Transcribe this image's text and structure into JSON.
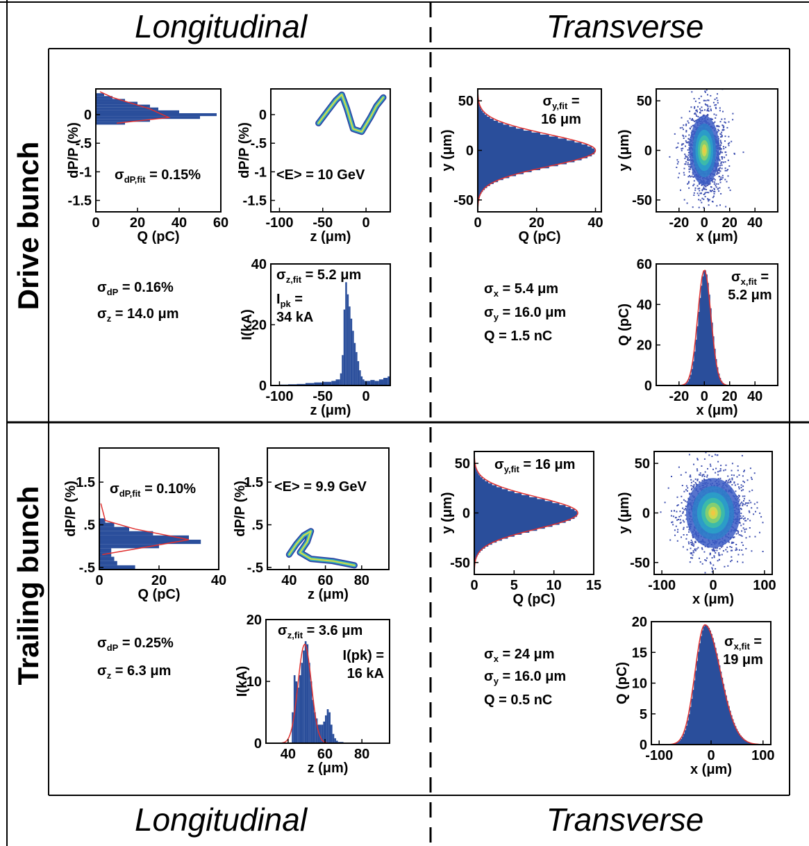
{
  "headings": {
    "longitudinal": "Longitudinal",
    "transverse": "Transverse"
  },
  "row_labels": {
    "drive": "Drive bunch",
    "trailing": "Trailing bunch"
  },
  "summaries": {
    "drive_long": {
      "sigma_dP": " = 0.16%",
      "sigma_z": " = 14.0 μm"
    },
    "drive_trans": {
      "sigma_x": " = 5.4 μm",
      "sigma_y": " = 16.0 μm",
      "charge": "Q = 1.5 nC"
    },
    "trailing_long": {
      "sigma_dP": " = 0.25%",
      "sigma_z": " = 6.3 μm"
    },
    "trailing_trans": {
      "sigma_x": " = 24 μm",
      "sigma_y": " = 16.0 μm",
      "charge": "Q = 0.5 nC"
    }
  },
  "colors": {
    "hist_fill": "#2a4e9b",
    "fit_line": "#e0302f",
    "frame": "#000000",
    "core": "#f2e23a"
  },
  "chart_data": [
    {
      "id": "drive-dpp-vs-q",
      "type": "bar",
      "orientation": "horizontal",
      "xlabel": "Q (pC)",
      "ylabel": "dP/P (%)",
      "xlim": [
        0,
        60
      ],
      "ylim": [
        -1.7,
        0.45
      ],
      "xticks": [
        "0",
        "20",
        "40",
        "60"
      ],
      "xtick_values": [
        0,
        20,
        40,
        60
      ],
      "yticks": [
        "0",
        "-.5",
        "-1",
        "-1.5"
      ],
      "ytick_values": [
        0,
        -0.5,
        -1,
        -1.5
      ],
      "annotation": {
        "sym": "σ",
        "sub": "dP,fit",
        "rest": " = 0.15%"
      },
      "bins": [
        -0.15,
        -0.1,
        -0.05,
        0.0,
        0.05,
        0.1,
        0.15,
        0.2,
        0.25,
        0.3,
        0.35
      ],
      "values": [
        14,
        26,
        50,
        58,
        40,
        30,
        26,
        20,
        14,
        8,
        4
      ],
      "fit": [
        [
          10,
          -0.15
        ],
        [
          35,
          -0.05
        ],
        [
          26,
          0.1
        ],
        [
          8,
          0.3
        ],
        [
          2,
          0.4
        ]
      ]
    },
    {
      "id": "drive-dpp-vs-z",
      "type": "heatmap",
      "xlabel": "z (μm)",
      "ylabel": "dP/P (%)",
      "xlim": [
        -110,
        28
      ],
      "ylim": [
        -1.7,
        0.45
      ],
      "xticks": [
        "-100",
        "-50",
        "0"
      ],
      "xtick_values": [
        -100,
        -50,
        0
      ],
      "yticks": [
        "0",
        "-.5",
        "-1",
        "-1.5"
      ],
      "ytick_values": [
        0,
        -0.5,
        -1,
        -1.5
      ],
      "annotation": {
        "sym": "",
        "sub": "",
        "rest": "<E> = 10 GeV"
      },
      "ridge": [
        [
          -55,
          -0.15
        ],
        [
          -45,
          0.05
        ],
        [
          -35,
          0.25
        ],
        [
          -28,
          0.35
        ],
        [
          -22,
          0.1
        ],
        [
          -15,
          -0.25
        ],
        [
          -5,
          -0.3
        ],
        [
          5,
          -0.05
        ],
        [
          12,
          0.15
        ],
        [
          20,
          0.3
        ]
      ]
    },
    {
      "id": "drive-y-vs-q",
      "type": "bar",
      "orientation": "horizontal",
      "xlabel": "Q (pC)",
      "ylabel": "y (μm)",
      "xlim": [
        0,
        42
      ],
      "ylim": [
        -62,
        62
      ],
      "xticks": [
        "0",
        "20",
        "40"
      ],
      "xtick_values": [
        0,
        20,
        40
      ],
      "yticks": [
        "50",
        "0",
        "-50"
      ],
      "ytick_values": [
        50,
        0,
        -50
      ],
      "annotation": {
        "sym": "σ",
        "sub": "y,fit",
        "rest": " = 16 μm"
      },
      "gaussian": {
        "amplitude": 40,
        "sigma": 16,
        "center": 0
      }
    },
    {
      "id": "drive-y-vs-x",
      "type": "heatmap",
      "xlabel": "x (μm)",
      "ylabel": "y (μm)",
      "xlim": [
        -38,
        58
      ],
      "ylim": [
        -62,
        62
      ],
      "xticks": [
        "-20",
        "0",
        "20",
        "40"
      ],
      "xtick_values": [
        -20,
        0,
        20,
        40
      ],
      "yticks": [
        "50",
        "0",
        "-50"
      ],
      "ytick_values": [
        50,
        0,
        -50
      ],
      "gaussian2d": {
        "sigma_x": 5.4,
        "sigma_y": 16
      }
    },
    {
      "id": "drive-current-vs-z",
      "type": "bar",
      "xlabel": "z (μm)",
      "ylabel": "I(kA)",
      "xlim": [
        -110,
        28
      ],
      "ylim": [
        0,
        40
      ],
      "xticks": [
        "-100",
        "-50",
        "0"
      ],
      "xtick_values": [
        -100,
        -50,
        0
      ],
      "yticks": [
        "0",
        "20",
        "40"
      ],
      "ytick_values": [
        0,
        20,
        40
      ],
      "annotation": {
        "sym": "σ",
        "sub": "z,fit",
        "rest": " = 5.2 μm"
      },
      "annotation2": {
        "line1": "I",
        "sub": "pk",
        "rest": " =",
        "line2": "34 kA"
      },
      "bins": [
        -100,
        -90,
        -80,
        -70,
        -60,
        -50,
        -40,
        -35,
        -30,
        -28,
        -26,
        -24,
        -22,
        -20,
        -18,
        -16,
        -14,
        -12,
        -10,
        -8,
        -6,
        -4,
        -2,
        0,
        5,
        10,
        15,
        20,
        25
      ],
      "values": [
        0.3,
        0.4,
        0.5,
        0.8,
        1.0,
        1.2,
        1.5,
        2,
        4,
        10,
        25,
        34,
        30,
        26,
        22,
        18,
        14,
        11,
        8,
        5,
        3,
        2,
        1.5,
        1.5,
        1.8,
        1.5,
        2,
        2.5,
        3
      ]
    },
    {
      "id": "drive-q-vs-x",
      "type": "bar",
      "xlabel": "x (μm)",
      "ylabel": "Q (pC)",
      "xlim": [
        -38,
        58
      ],
      "ylim": [
        0,
        60
      ],
      "xticks": [
        "-20",
        "0",
        "20",
        "40"
      ],
      "xtick_values": [
        -20,
        0,
        20,
        40
      ],
      "yticks": [
        "0",
        "20",
        "40",
        "60"
      ],
      "ytick_values": [
        0,
        20,
        40,
        60
      ],
      "annotation": {
        "sym": "σ",
        "sub": "x,fit",
        "rest": " = 5.2 μm"
      },
      "gaussian": {
        "amplitude": 57,
        "sigma": 5.2,
        "center": 0
      }
    },
    {
      "id": "trailing-dpp-vs-q",
      "type": "bar",
      "orientation": "horizontal",
      "xlabel": "Q (pC)",
      "ylabel": "dP/P (%)",
      "xlim": [
        0,
        40
      ],
      "ylim": [
        -0.55,
        2.3
      ],
      "xticks": [
        "0",
        "20",
        "40"
      ],
      "xtick_values": [
        0,
        20,
        40
      ],
      "yticks": [
        "1.5",
        ".5",
        "-.5"
      ],
      "ytick_values": [
        1.5,
        0.5,
        -0.5
      ],
      "annotation": {
        "sym": "σ",
        "sub": "dP,fit",
        "rest": " = 0.10%"
      },
      "bins": [
        -0.5,
        -0.4,
        -0.3,
        -0.2,
        -0.1,
        0.0,
        0.1,
        0.2,
        0.3,
        0.4,
        0.5,
        0.6
      ],
      "values": [
        12,
        6,
        5,
        4,
        4,
        20,
        34,
        30,
        18,
        10,
        5,
        2
      ],
      "fit": [
        [
          1,
          -0.2
        ],
        [
          30,
          0.15
        ],
        [
          12,
          0.4
        ],
        [
          2,
          0.6
        ],
        [
          0.5,
          1.0
        ]
      ]
    },
    {
      "id": "trailing-dpp-vs-z",
      "type": "heatmap",
      "xlabel": "z (μm)",
      "ylabel": "dP/P (%)",
      "xlim": [
        28,
        95
      ],
      "ylim": [
        -0.55,
        2.3
      ],
      "xticks": [
        "40",
        "60",
        "80"
      ],
      "xtick_values": [
        40,
        60,
        80
      ],
      "yticks": [
        "1.5",
        ".5",
        "-.5"
      ],
      "ytick_values": [
        1.5,
        0.5,
        -0.5
      ],
      "annotation": {
        "sym": "",
        "sub": "",
        "rest": "<E> = 9.9 GeV"
      },
      "ridge": [
        [
          40,
          -0.2
        ],
        [
          44,
          0.05
        ],
        [
          48,
          0.25
        ],
        [
          52,
          0.35
        ],
        [
          50,
          0.1
        ],
        [
          46,
          -0.15
        ],
        [
          52,
          -0.3
        ],
        [
          64,
          -0.35
        ],
        [
          76,
          -0.45
        ]
      ]
    },
    {
      "id": "trailing-y-vs-q",
      "type": "bar",
      "orientation": "horizontal",
      "xlabel": "Q (pC)",
      "ylabel": "y (μm)",
      "xlim": [
        0,
        15
      ],
      "ylim": [
        -62,
        62
      ],
      "xticks": [
        "0",
        "5",
        "10",
        "15"
      ],
      "xtick_values": [
        0,
        5,
        10,
        15
      ],
      "yticks": [
        "50",
        "0",
        "-50"
      ],
      "ytick_values": [
        50,
        0,
        -50
      ],
      "annotation": {
        "sym": "σ",
        "sub": "y,fit",
        "rest": " = 16 μm"
      },
      "gaussian": {
        "amplitude": 13,
        "sigma": 16,
        "center": 0
      }
    },
    {
      "id": "trailing-y-vs-x",
      "type": "heatmap",
      "xlabel": "x (μm)",
      "ylabel": "y (μm)",
      "xlim": [
        -115,
        115
      ],
      "ylim": [
        -62,
        62
      ],
      "xticks": [
        "-100",
        "0",
        "100"
      ],
      "xtick_values": [
        -100,
        0,
        100
      ],
      "yticks": [
        "50",
        "0",
        "-50"
      ],
      "ytick_values": [
        50,
        0,
        -50
      ],
      "gaussian2d": {
        "sigma_x": 24,
        "sigma_y": 16
      }
    },
    {
      "id": "trailing-current-vs-z",
      "type": "bar",
      "xlabel": "z (μm)",
      "ylabel": "I(kA)",
      "xlim": [
        28,
        95
      ],
      "ylim": [
        0,
        20
      ],
      "xticks": [
        "40",
        "60",
        "80"
      ],
      "xtick_values": [
        40,
        60,
        80
      ],
      "yticks": [
        "0",
        "10",
        "20"
      ],
      "ytick_values": [
        0,
        10,
        20
      ],
      "annotation": {
        "sym": "σ",
        "sub": "z,fit",
        "rest": " = 3.6 μm"
      },
      "annotation2": {
        "line1": "I(pk) =",
        "sub": "",
        "rest": "",
        "line2": "16 kA"
      },
      "bins": [
        42,
        43,
        44,
        45,
        46,
        47,
        48,
        49,
        50,
        51,
        52,
        53,
        54,
        55,
        56,
        57,
        58,
        59,
        60,
        61,
        62,
        63,
        64,
        65,
        66,
        67
      ],
      "values": [
        5,
        11,
        10,
        9,
        11,
        13,
        15,
        16.5,
        16,
        13,
        10,
        7,
        5,
        4,
        3,
        3,
        3,
        3.5,
        4.5,
        5.5,
        5,
        3,
        1.5,
        0.8,
        0.4,
        0.2
      ],
      "fit": {
        "amplitude": 16,
        "sigma": 3.6,
        "center": 49
      }
    },
    {
      "id": "trailing-q-vs-x",
      "type": "bar",
      "xlabel": "x (μm)",
      "ylabel": "Q (pC)",
      "xlim": [
        -115,
        115
      ],
      "ylim": [
        0,
        20
      ],
      "xticks": [
        "-100",
        "0",
        "100"
      ],
      "xtick_values": [
        -100,
        0,
        100
      ],
      "yticks": [
        "0",
        "5",
        "10",
        "15",
        "20"
      ],
      "ytick_values": [
        0,
        5,
        10,
        15,
        20
      ],
      "annotation": {
        "sym": "σ",
        "sub": "x,fit",
        "rest": " = 19 μm"
      },
      "gaussian": {
        "amplitude": 19.5,
        "sigma": 19,
        "center": -12,
        "tail_sigma": 30
      }
    }
  ]
}
